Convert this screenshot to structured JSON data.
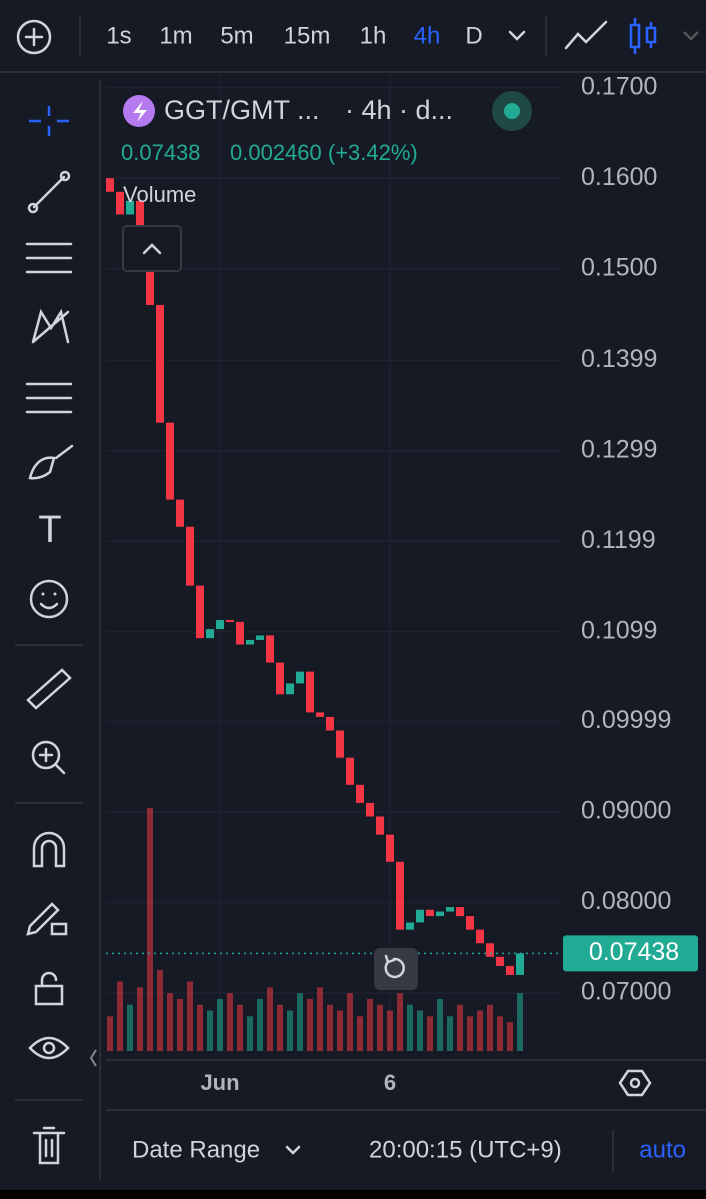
{
  "toolbar": {
    "intervals": [
      "1s",
      "1m",
      "5m",
      "15m",
      "1h",
      "4h",
      "D"
    ]
  },
  "header": {
    "symbol": "GGT/GMT ...",
    "interval": "· 4h · d...",
    "last": "0.07438",
    "change": "0.002460 (+3.42%)"
  },
  "footer": {
    "date_range": "Date Range",
    "clock": "20:00:15 (UTC+9)",
    "auto": "auto"
  },
  "chart_data": {
    "type": "candlestick",
    "volume_label": "Volume",
    "categories": [
      null,
      null,
      null,
      null,
      null,
      null,
      null,
      null,
      null,
      null,
      null,
      "Jun",
      null,
      null,
      null,
      null,
      null,
      null,
      null,
      null,
      null,
      null,
      null,
      null,
      null,
      null,
      null,
      null,
      "6",
      null,
      null,
      null,
      null,
      null,
      null,
      null,
      null,
      null,
      null,
      null,
      null,
      null
    ],
    "open": [
      0.16,
      0.1585,
      0.156,
      0.1575,
      0.154,
      0.146,
      0.133,
      0.1245,
      0.1215,
      0.115,
      0.1092,
      0.1102,
      0.1112,
      0.111,
      0.1085,
      0.109,
      0.1095,
      0.1065,
      0.103,
      0.1042,
      0.1055,
      0.101,
      0.1005,
      0.099,
      0.096,
      0.093,
      0.091,
      0.0895,
      0.0875,
      0.0845,
      0.077,
      0.0778,
      0.0792,
      0.0785,
      0.079,
      0.0795,
      0.0785,
      0.077,
      0.0755,
      0.074,
      0.073,
      0.072
    ],
    "close": [
      0.1585,
      0.156,
      0.1575,
      0.154,
      0.146,
      0.133,
      0.1245,
      0.1215,
      0.115,
      0.1092,
      0.1102,
      0.1112,
      0.111,
      0.1085,
      0.109,
      0.1095,
      0.1065,
      0.103,
      0.1042,
      0.1055,
      0.101,
      0.1005,
      0.099,
      0.096,
      0.093,
      0.091,
      0.0895,
      0.0875,
      0.0845,
      0.077,
      0.0778,
      0.0792,
      0.0785,
      0.079,
      0.0795,
      0.0785,
      0.077,
      0.0755,
      0.074,
      0.073,
      0.072,
      0.07438
    ],
    "volume": [
      30,
      60,
      40,
      55,
      210,
      70,
      50,
      45,
      60,
      40,
      35,
      45,
      50,
      40,
      30,
      45,
      55,
      40,
      35,
      50,
      45,
      55,
      40,
      35,
      50,
      30,
      45,
      40,
      35,
      50,
      40,
      35,
      30,
      45,
      30,
      40,
      30,
      35,
      40,
      30,
      25,
      50
    ],
    "up_color": "#22ab94",
    "down_color": "#f23645",
    "ylim": [
      0.0636,
      0.1714
    ],
    "yticks": [
      {
        "value": 0.17,
        "label": "0.1700"
      },
      {
        "value": 0.16,
        "label": "0.1600"
      },
      {
        "value": 0.15,
        "label": "0.1500"
      },
      {
        "value": 0.1399,
        "label": "0.1399"
      },
      {
        "value": 0.1299,
        "label": "0.1299"
      },
      {
        "value": 0.1199,
        "label": "0.1199"
      },
      {
        "value": 0.1099,
        "label": "0.1099"
      },
      {
        "value": 0.09999,
        "label": "0.09999"
      },
      {
        "value": 0.09,
        "label": "0.09000"
      },
      {
        "value": 0.08,
        "label": "0.08000"
      },
      {
        "value": 0.07,
        "label": "0.07000"
      }
    ],
    "last_price": 0.07438,
    "grid": true
  }
}
